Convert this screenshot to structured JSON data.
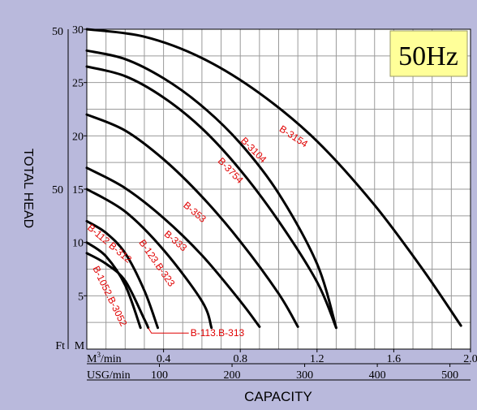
{
  "chart_data": {
    "type": "line",
    "badge": "50Hz",
    "ylabel": "TOTAL HEAD",
    "xlabel": "CAPACITY",
    "corner_labels": {
      "ft": "Ft",
      "m": "M"
    },
    "y_m_ticks": [
      "5",
      "10",
      "15",
      "20",
      "25",
      "30"
    ],
    "y_ft_ticks": [
      "50",
      "50"
    ],
    "x_unit_top": "M³/min",
    "x_unit_top_base": "M",
    "x_unit_top_sup": "3",
    "x_unit_top_rest": "/min",
    "x_unit_bottom": "USG/min",
    "x_ticks_m3": [
      0.4,
      0.8,
      1.2,
      1.6,
      2.0
    ],
    "x_tick_labels_m3": [
      "0.4",
      "0.8",
      "1.2",
      "1.6",
      "2.0"
    ],
    "x_ticks_usg": [
      100,
      200,
      300,
      400,
      500
    ],
    "x_tick_labels_usg": [
      "100",
      "200",
      "300",
      "400",
      "500"
    ],
    "xlim": [
      0,
      2.0
    ],
    "ylim": [
      0,
      30
    ],
    "grid": true,
    "series": [
      {
        "name": "B-3154",
        "label_pos": [
          1.0,
          20.5
        ],
        "label_angle": 33,
        "x": [
          0,
          0.3,
          0.6,
          0.9,
          1.2,
          1.5,
          1.75,
          1.95
        ],
        "y": [
          30,
          29.3,
          27.3,
          24.0,
          19.5,
          13.5,
          7.5,
          2.2
        ]
      },
      {
        "name": "B-3104",
        "label_pos": [
          0.8,
          19.5
        ],
        "label_angle": 45,
        "x": [
          0,
          0.2,
          0.4,
          0.6,
          0.8,
          1.0,
          1.2,
          1.3
        ],
        "y": [
          28,
          27.2,
          25.4,
          22.8,
          19.3,
          14.6,
          8.0,
          2.0
        ]
      },
      {
        "name": "B-3754",
        "label_pos": [
          0.68,
          17.6
        ],
        "label_angle": 46,
        "x": [
          0,
          0.2,
          0.4,
          0.6,
          0.8,
          1.0,
          1.2,
          1.3
        ],
        "y": [
          26.5,
          25.6,
          23.6,
          20.7,
          16.8,
          12.0,
          6.3,
          2.0
        ]
      },
      {
        "name": "B-353",
        "label_pos": [
          0.5,
          13.4
        ],
        "label_angle": 40,
        "x": [
          0,
          0.2,
          0.4,
          0.6,
          0.8,
          1.0,
          1.1
        ],
        "y": [
          22,
          20.5,
          17.8,
          14.3,
          10.1,
          5.2,
          2.1
        ]
      },
      {
        "name": "B-333",
        "label_pos": [
          0.4,
          10.7
        ],
        "label_angle": 40,
        "x": [
          0,
          0.2,
          0.4,
          0.6,
          0.8,
          0.9
        ],
        "y": [
          17,
          15.1,
          12.3,
          8.8,
          4.5,
          2.1
        ]
      },
      {
        "name": "B-123.B-323",
        "label_pos": [
          0.27,
          10.0
        ],
        "label_angle": 55,
        "x": [
          0,
          0.2,
          0.4,
          0.6,
          0.65
        ],
        "y": [
          15,
          12.9,
          9.3,
          4.5,
          2.0
        ]
      },
      {
        "name": "B-112 B-312",
        "label_pos": [
          0.0,
          11.3
        ],
        "label_angle": 40,
        "x": [
          0,
          0.1,
          0.2,
          0.3,
          0.37
        ],
        "y": [
          12,
          10.9,
          9.0,
          5.5,
          2.0
        ]
      },
      {
        "name": "B-1052.B-3052",
        "label_pos": [
          0.03,
          7.6
        ],
        "label_angle": 64,
        "x": [
          0,
          0.1,
          0.2,
          0.28
        ],
        "y": [
          10,
          8.7,
          6.0,
          2.0
        ]
      },
      {
        "name": "B-113.B-313",
        "label_pos": [
          0.54,
          1.2
        ],
        "label_angle": 0,
        "x": [
          0,
          0.1,
          0.2,
          0.3,
          0.32
        ],
        "y": [
          9,
          8.0,
          6.4,
          2.8,
          2.0
        ]
      }
    ]
  }
}
